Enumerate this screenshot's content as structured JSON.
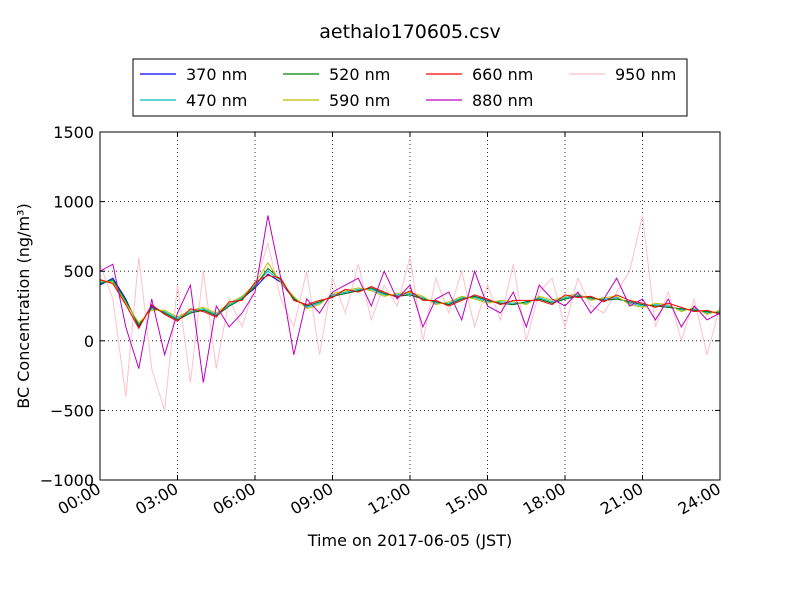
{
  "chart_data": {
    "type": "line",
    "title": "aethalo170605.csv",
    "xlabel": "Time on 2017-06-05 (JST)",
    "ylabel": "BC Concentration (ng/m³)",
    "ylim": [
      -1000,
      1500
    ],
    "yticks": [
      "1500",
      "1000",
      "500",
      "0",
      "−500",
      "−1000"
    ],
    "ytick_values": [
      1500,
      1000,
      500,
      0,
      -500,
      -1000
    ],
    "xlim": [
      "00:00",
      "24:00"
    ],
    "xticks": [
      "00:00",
      "03:00",
      "06:00",
      "09:00",
      "12:00",
      "15:00",
      "18:00",
      "21:00",
      "24:00"
    ],
    "grid": true,
    "legend_position": "top-center",
    "series": [
      {
        "name": "370 nm",
        "color": "#0000ff",
        "x": [
          "00:00",
          "00:30",
          "01:00",
          "01:30",
          "02:00",
          "02:30",
          "03:00",
          "03:30",
          "04:00",
          "04:30",
          "05:00",
          "05:30",
          "06:00",
          "06:30",
          "07:00",
          "07:30",
          "08:00",
          "08:30",
          "09:00",
          "09:30",
          "10:00",
          "10:30",
          "11:00",
          "11:30",
          "12:00",
          "12:30",
          "13:00",
          "13:30",
          "14:00",
          "14:30",
          "15:00",
          "15:30",
          "16:00",
          "16:30",
          "17:00",
          "17:30",
          "18:00",
          "18:30",
          "19:00",
          "19:30",
          "20:00",
          "20:30",
          "21:00",
          "21:30",
          "22:00",
          "22:30",
          "23:00",
          "23:30",
          "24:00"
        ],
        "values": [
          400,
          450,
          300,
          100,
          250,
          200,
          150,
          200,
          220,
          180,
          250,
          300,
          380,
          480,
          420,
          300,
          250,
          280,
          320,
          340,
          360,
          380,
          340,
          320,
          330,
          300,
          280,
          260,
          300,
          320,
          290,
          270,
          260,
          280,
          300,
          270,
          300,
          320,
          310,
          290,
          300,
          280,
          260,
          250,
          240,
          230,
          220,
          210,
          200
        ]
      },
      {
        "name": "470 nm",
        "color": "#00bfbf",
        "x": [
          "00:00",
          "00:30",
          "01:00",
          "01:30",
          "02:00",
          "02:30",
          "03:00",
          "03:30",
          "04:00",
          "04:30",
          "05:00",
          "05:30",
          "06:00",
          "06:30",
          "07:00",
          "07:30",
          "08:00",
          "08:30",
          "09:00",
          "09:30",
          "10:00",
          "10:30",
          "11:00",
          "11:30",
          "12:00",
          "12:30",
          "13:00",
          "13:30",
          "14:00",
          "14:30",
          "15:00",
          "15:30",
          "16:00",
          "16:30",
          "17:00",
          "17:30",
          "18:00",
          "18:30",
          "19:00",
          "19:30",
          "20:00",
          "20:30",
          "21:00",
          "21:30",
          "22:00",
          "22:30",
          "23:00",
          "23:30",
          "24:00"
        ],
        "values": [
          420,
          430,
          280,
          120,
          230,
          210,
          160,
          210,
          230,
          190,
          260,
          310,
          400,
          500,
          430,
          310,
          240,
          270,
          330,
          350,
          370,
          370,
          330,
          330,
          340,
          310,
          270,
          270,
          310,
          310,
          280,
          280,
          270,
          270,
          310,
          280,
          310,
          330,
          300,
          300,
          310,
          270,
          250,
          260,
          250,
          220,
          230,
          200,
          210
        ]
      },
      {
        "name": "520 nm",
        "color": "#008000",
        "x": [
          "00:00",
          "00:30",
          "01:00",
          "01:30",
          "02:00",
          "02:30",
          "03:00",
          "03:30",
          "04:00",
          "04:30",
          "05:00",
          "05:30",
          "06:00",
          "06:30",
          "07:00",
          "07:30",
          "08:00",
          "08:30",
          "09:00",
          "09:30",
          "10:00",
          "10:30",
          "11:00",
          "11:30",
          "12:00",
          "12:30",
          "13:00",
          "13:30",
          "14:00",
          "14:30",
          "15:00",
          "15:30",
          "16:00",
          "16:30",
          "17:00",
          "17:30",
          "18:00",
          "18:30",
          "19:00",
          "19:30",
          "20:00",
          "20:30",
          "21:00",
          "21:30",
          "22:00",
          "22:30",
          "23:00",
          "23:30",
          "24:00"
        ],
        "values": [
          410,
          440,
          290,
          110,
          240,
          200,
          150,
          200,
          220,
          180,
          250,
          300,
          390,
          520,
          440,
          300,
          250,
          280,
          320,
          340,
          360,
          380,
          340,
          320,
          330,
          300,
          280,
          260,
          300,
          320,
          290,
          270,
          260,
          280,
          300,
          270,
          300,
          320,
          310,
          290,
          300,
          280,
          260,
          250,
          240,
          230,
          220,
          210,
          200
        ]
      },
      {
        "name": "590 nm",
        "color": "#bfbf00",
        "x": [
          "00:00",
          "00:30",
          "01:00",
          "01:30",
          "02:00",
          "02:30",
          "03:00",
          "03:30",
          "04:00",
          "04:30",
          "05:00",
          "05:30",
          "06:00",
          "06:30",
          "07:00",
          "07:30",
          "08:00",
          "08:30",
          "09:00",
          "09:30",
          "10:00",
          "10:30",
          "11:00",
          "11:30",
          "12:00",
          "12:30",
          "13:00",
          "13:30",
          "14:00",
          "14:30",
          "15:00",
          "15:30",
          "16:00",
          "16:30",
          "17:00",
          "17:30",
          "18:00",
          "18:30",
          "19:00",
          "19:30",
          "20:00",
          "20:30",
          "21:00",
          "21:30",
          "22:00",
          "22:30",
          "23:00",
          "23:30",
          "24:00"
        ],
        "values": [
          430,
          420,
          270,
          130,
          220,
          220,
          170,
          220,
          240,
          200,
          270,
          320,
          410,
          560,
          420,
          320,
          230,
          260,
          340,
          360,
          380,
          360,
          320,
          340,
          350,
          320,
          260,
          280,
          320,
          300,
          270,
          290,
          280,
          260,
          320,
          290,
          320,
          340,
          290,
          310,
          320,
          260,
          240,
          270,
          260,
          210,
          240,
          190,
          220
        ]
      },
      {
        "name": "660 nm",
        "color": "#ff0000",
        "x": [
          "00:00",
          "00:30",
          "01:00",
          "01:30",
          "02:00",
          "02:30",
          "03:00",
          "03:30",
          "04:00",
          "04:30",
          "05:00",
          "05:30",
          "06:00",
          "06:30",
          "07:00",
          "07:30",
          "08:00",
          "08:30",
          "09:00",
          "09:30",
          "10:00",
          "10:30",
          "11:00",
          "11:30",
          "12:00",
          "12:30",
          "13:00",
          "13:30",
          "14:00",
          "14:30",
          "15:00",
          "15:30",
          "16:00",
          "16:30",
          "17:00",
          "17:30",
          "18:00",
          "18:30",
          "19:00",
          "19:30",
          "20:00",
          "20:30",
          "21:00",
          "21:30",
          "22:00",
          "22:30",
          "23:00",
          "23:30",
          "24:00"
        ],
        "values": [
          440,
          410,
          260,
          90,
          260,
          190,
          140,
          230,
          210,
          170,
          280,
          290,
          420,
          470,
          450,
          290,
          260,
          290,
          310,
          370,
          350,
          390,
          350,
          310,
          360,
          290,
          290,
          250,
          290,
          330,
          300,
          260,
          290,
          290,
          290,
          260,
          330,
          310,
          320,
          280,
          330,
          290,
          270,
          240,
          270,
          240,
          210,
          220,
          190
        ]
      },
      {
        "name": "880 nm",
        "color": "#bf00bf",
        "x": [
          "00:00",
          "00:30",
          "01:00",
          "01:30",
          "02:00",
          "02:30",
          "03:00",
          "03:30",
          "04:00",
          "04:30",
          "05:00",
          "05:30",
          "06:00",
          "06:30",
          "07:00",
          "07:30",
          "08:00",
          "08:30",
          "09:00",
          "09:30",
          "10:00",
          "10:30",
          "11:00",
          "11:30",
          "12:00",
          "12:30",
          "13:00",
          "13:30",
          "14:00",
          "14:30",
          "15:00",
          "15:30",
          "16:00",
          "16:30",
          "17:00",
          "17:30",
          "18:00",
          "18:30",
          "19:00",
          "19:30",
          "20:00",
          "20:30",
          "21:00",
          "21:30",
          "22:00",
          "22:30",
          "23:00",
          "23:30",
          "24:00"
        ],
        "values": [
          500,
          550,
          100,
          -200,
          300,
          -100,
          200,
          400,
          -300,
          250,
          100,
          200,
          350,
          900,
          450,
          -100,
          300,
          200,
          350,
          400,
          450,
          250,
          500,
          300,
          400,
          100,
          300,
          350,
          150,
          500,
          250,
          200,
          350,
          100,
          400,
          300,
          250,
          350,
          200,
          300,
          450,
          250,
          300,
          150,
          300,
          100,
          250,
          150,
          200
        ]
      },
      {
        "name": "950 nm",
        "color": "#ffc0cb",
        "x": [
          "00:00",
          "00:30",
          "01:00",
          "01:30",
          "02:00",
          "02:30",
          "03:00",
          "03:30",
          "04:00",
          "04:30",
          "05:00",
          "05:30",
          "06:00",
          "06:30",
          "07:00",
          "07:30",
          "08:00",
          "08:30",
          "09:00",
          "09:30",
          "10:00",
          "10:30",
          "11:00",
          "11:30",
          "12:00",
          "12:30",
          "13:00",
          "13:30",
          "14:00",
          "14:30",
          "15:00",
          "15:30",
          "16:00",
          "16:30",
          "17:00",
          "17:30",
          "18:00",
          "18:30",
          "19:00",
          "19:30",
          "20:00",
          "20:30",
          "21:00",
          "21:30",
          "22:00",
          "22:30",
          "23:00",
          "23:30",
          "24:00"
        ],
        "values": [
          550,
          300,
          -400,
          600,
          -200,
          -500,
          400,
          -300,
          500,
          -200,
          300,
          100,
          400,
          700,
          300,
          100,
          500,
          -100,
          450,
          200,
          550,
          150,
          400,
          250,
          600,
          0,
          450,
          200,
          500,
          100,
          400,
          150,
          550,
          0,
          350,
          450,
          100,
          450,
          250,
          200,
          350,
          500,
          900,
          100,
          350,
          0,
          300,
          -100,
          250
        ]
      }
    ]
  }
}
